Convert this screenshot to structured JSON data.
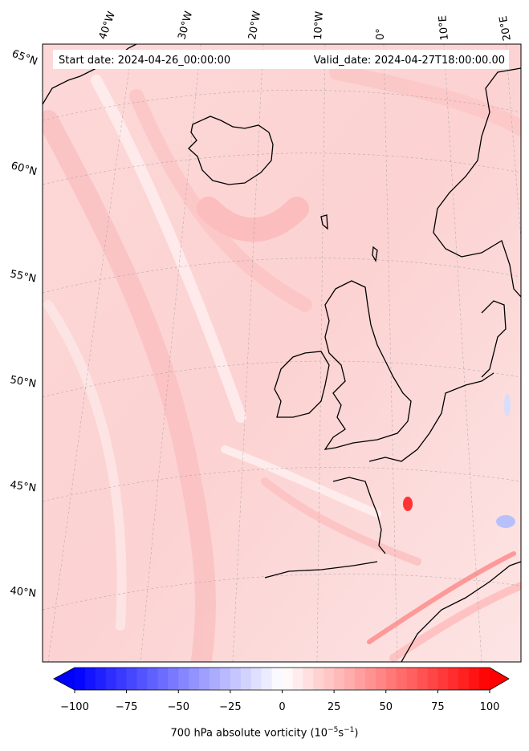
{
  "header": {
    "start_date": "Start date: 2024-04-26_00:00:00",
    "valid_date": "Valid_date: 2024-04-27T18:00:00.00"
  },
  "map": {
    "longitude_labels": [
      "40°W",
      "30°W",
      "20°W",
      "10°W",
      "0°",
      "10°E",
      "20°E"
    ],
    "latitude_labels": [
      "65°N",
      "60°N",
      "55°N",
      "50°N",
      "45°N",
      "40°N"
    ]
  },
  "colorbar": {
    "min": -100,
    "max": 100,
    "step": 5,
    "ticks": [
      "−100",
      "−75",
      "−50",
      "−25",
      "0",
      "25",
      "50",
      "75",
      "100"
    ],
    "label_main": "700 hPa absolute vorticity (10",
    "label_exp1": "−5",
    "label_unit": "s",
    "label_exp2": "−1",
    "label_close": ")",
    "cmap": "bwr"
  }
}
